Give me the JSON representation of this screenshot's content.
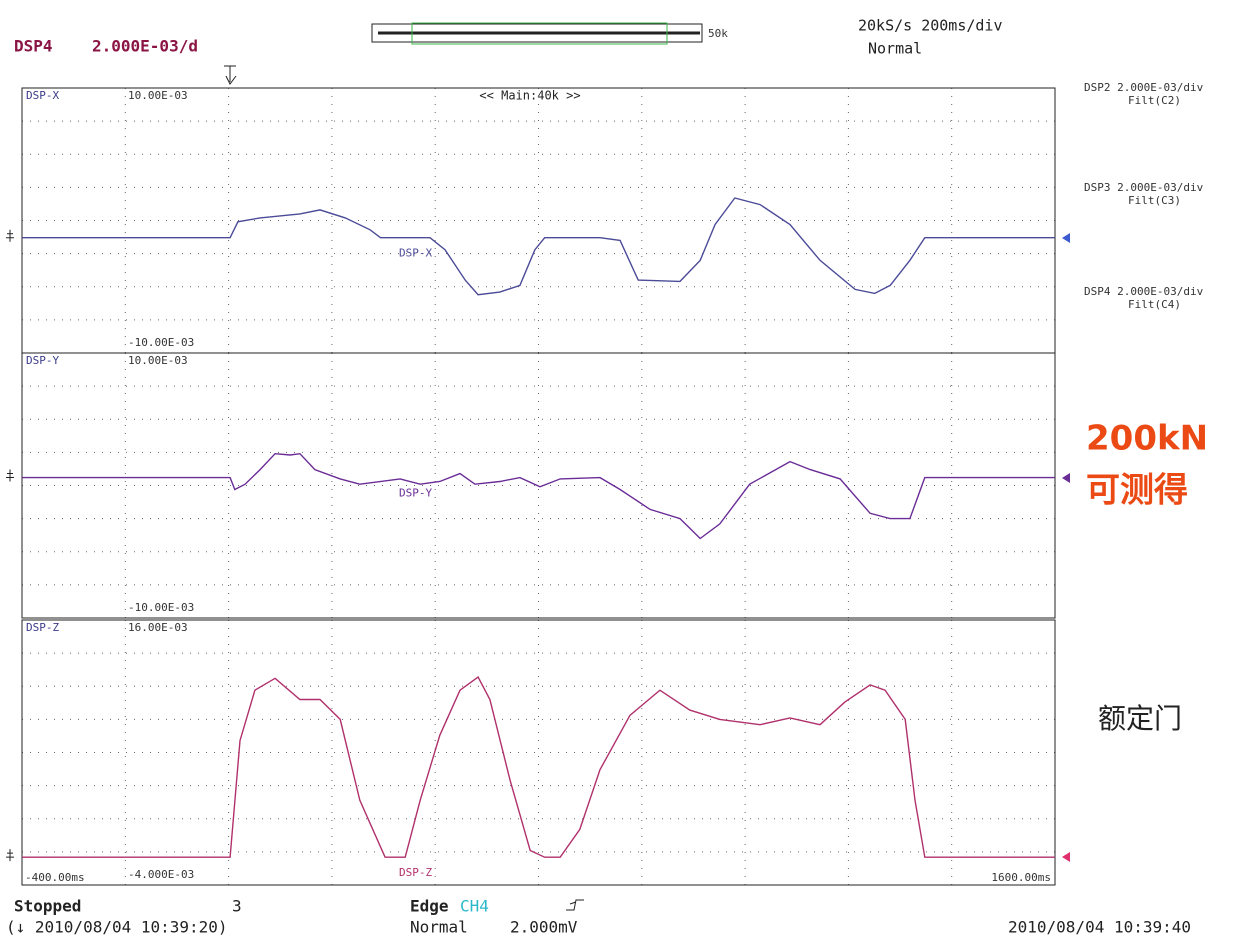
{
  "screen": {
    "channel": "DSP4",
    "scale": "2.000E-03/d",
    "record": "50k",
    "rate": "20kS/s 200ms/div",
    "mode": "Normal",
    "zoom": "<< Main:40k >>",
    "side": [
      {
        "label": "DSP2 2.000E-03/div",
        "filter": "Filt(C2)"
      },
      {
        "label": "DSP3 2.000E-03/div",
        "filter": "Filt(C3)"
      },
      {
        "label": "DSP4 2.000E-03/div",
        "filter": "Filt(C4)"
      }
    ],
    "overlay": [
      "200kN",
      "可测得",
      "额定门"
    ],
    "status": "Stopped",
    "count": "3",
    "trigger": "Edge",
    "trigger_channel": "CH4",
    "trigger_mode": "Normal",
    "trigger_level": "2.000mV",
    "start_time": "(↓ 2010/08/04 10:39:20)",
    "end_time": "2010/08/04 10:39:40"
  },
  "chart_data": [
    {
      "type": "line",
      "title": "DSP-X",
      "xlim": [
        -400,
        1600
      ],
      "ylim": [
        -10,
        10
      ],
      "yticks": [
        {
          "value": -10,
          "label": "-10.00E-03"
        },
        {
          "value": 10,
          "label": "10.00E-03"
        }
      ],
      "x": [
        -400,
        3,
        18,
        61,
        138,
        177,
        226,
        274,
        294,
        390,
        419,
        458,
        483,
        525,
        564,
        593,
        612,
        719,
        758,
        793,
        874,
        913,
        942,
        980,
        1029,
        1087,
        1145,
        1213,
        1251,
        1281,
        1319,
        1348,
        1600
      ],
      "series": [
        {
          "name": "DSP-X",
          "color": "#4b4b98",
          "values": [
            -1.3,
            -1.3,
            -0.1,
            0.2,
            0.5,
            0.8,
            0.2,
            -0.7,
            -1.3,
            -1.3,
            -2.2,
            -4.5,
            -5.6,
            -5.4,
            -4.9,
            -2.2,
            -1.3,
            -1.3,
            -1.5,
            -4.5,
            -4.6,
            -3.0,
            -0.3,
            1.7,
            1.2,
            -0.3,
            -3.0,
            -5.2,
            -5.5,
            -4.9,
            -3.0,
            -1.3,
            -1.3
          ]
        }
      ]
    },
    {
      "type": "line",
      "title": "DSP-Y",
      "xlim": [
        -400,
        1600
      ],
      "ylim": [
        -10,
        10
      ],
      "yticks": [
        {
          "value": -10,
          "label": "-10.00E-03"
        },
        {
          "value": 10,
          "label": "10.00E-03"
        }
      ],
      "x": [
        -400,
        3,
        12,
        32,
        61,
        90,
        119,
        138,
        167,
        216,
        254,
        332,
        371,
        409,
        448,
        477,
        525,
        564,
        603,
        642,
        719,
        758,
        816,
        874,
        913,
        951,
        1009,
        1087,
        1126,
        1184,
        1242,
        1281,
        1319,
        1348,
        1600
      ],
      "series": [
        {
          "name": "DSP-Y",
          "color": "#6a2c96",
          "values": [
            0.6,
            0.6,
            -0.3,
            0.1,
            1.2,
            2.4,
            2.3,
            2.4,
            1.2,
            0.5,
            0.1,
            0.5,
            0.1,
            0.3,
            0.9,
            0.1,
            0.3,
            0.6,
            -0.1,
            0.5,
            0.6,
            -0.3,
            -1.8,
            -2.5,
            -4.0,
            -2.9,
            0.1,
            1.8,
            1.2,
            0.5,
            -2.1,
            -2.5,
            -2.5,
            0.6,
            0.6
          ]
        }
      ]
    },
    {
      "type": "line",
      "title": "DSP-Z",
      "xlim": [
        -400,
        1600
      ],
      "ylim": [
        -4,
        16
      ],
      "yticks": [
        {
          "value": -4,
          "label": "-4.000E-03"
        },
        {
          "value": 16,
          "label": "16.00E-03"
        }
      ],
      "xticks": [
        {
          "value": -400,
          "label": "-400.00ms"
        },
        {
          "value": 1600,
          "label": "1600.00ms"
        }
      ],
      "x": [
        -400,
        3,
        22,
        51,
        90,
        138,
        177,
        216,
        254,
        303,
        342,
        371,
        409,
        448,
        483,
        506,
        545,
        584,
        612,
        642,
        680,
        719,
        777,
        835,
        893,
        951,
        1029,
        1087,
        1145,
        1193,
        1242,
        1271,
        1310,
        1329,
        1348,
        1600
      ],
      "series": [
        {
          "name": "DSP-Z",
          "color": "#b0306c",
          "values": [
            -1.9,
            -1.9,
            6.9,
            10.7,
            11.6,
            10.0,
            10.0,
            8.5,
            2.4,
            -1.9,
            -1.9,
            2.4,
            7.3,
            10.7,
            11.7,
            10.0,
            3.9,
            -1.4,
            -1.9,
            -1.9,
            0.2,
            4.7,
            8.8,
            10.7,
            9.2,
            8.5,
            8.1,
            8.6,
            8.1,
            9.8,
            11.1,
            10.7,
            8.5,
            2.4,
            -1.9,
            -1.9
          ]
        }
      ]
    }
  ]
}
